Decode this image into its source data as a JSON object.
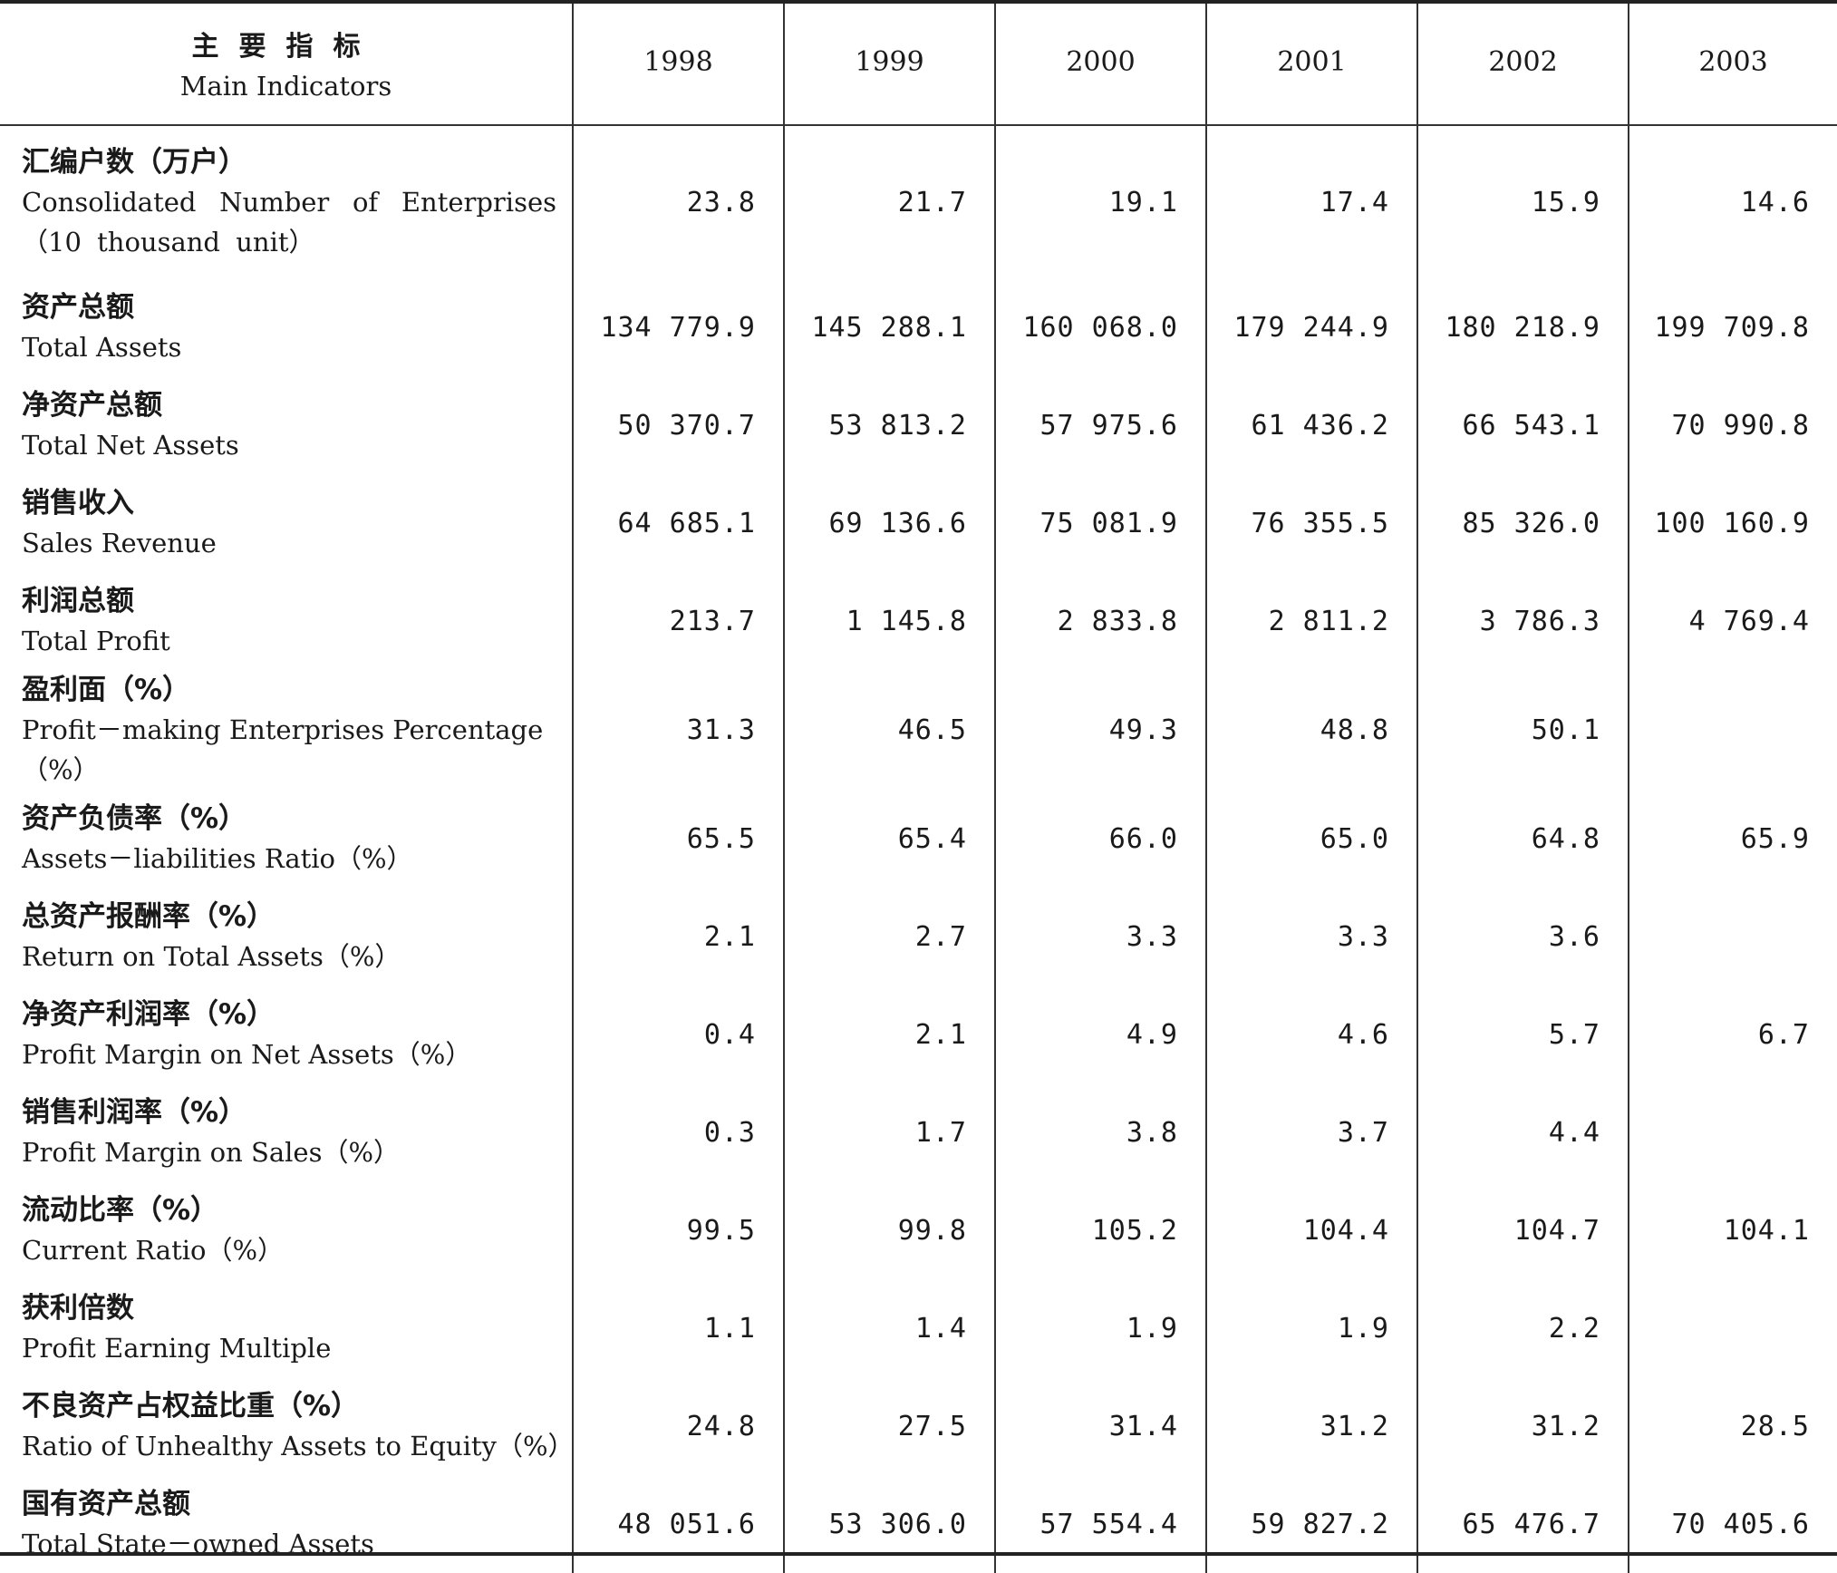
{
  "table": {
    "header": {
      "indicator_zh": "主要指标",
      "indicator_en": "Main Indicators",
      "years": [
        "1998",
        "1999",
        "2000",
        "2001",
        "2002",
        "2003"
      ]
    },
    "rows": [
      {
        "zh": "汇编户数（万户）",
        "en": "Consolidated Number of Enterprises（10 thousand unit）",
        "values": [
          "23.8",
          "21.7",
          "19.1",
          "17.4",
          "15.9",
          "14.6"
        ]
      },
      {
        "zh": "资产总额",
        "en": "Total Assets",
        "values": [
          "134 779.9",
          "145 288.1",
          "160 068.0",
          "179 244.9",
          "180 218.9",
          "199 709.8"
        ]
      },
      {
        "zh": "净资产总额",
        "en": "Total Net Assets",
        "values": [
          "50 370.7",
          "53 813.2",
          "57 975.6",
          "61 436.2",
          "66 543.1",
          "70 990.8"
        ]
      },
      {
        "zh": "销售收入",
        "en": "Sales Revenue",
        "values": [
          "64 685.1",
          "69 136.6",
          "75 081.9",
          "76 355.5",
          "85 326.0",
          "100 160.9"
        ]
      },
      {
        "zh": "利润总额",
        "en": "Total Profit",
        "values": [
          "213.7",
          "1 145.8",
          "2 833.8",
          "2 811.2",
          "3 786.3",
          "4 769.4"
        ]
      },
      {
        "zh": "盈利面（%）",
        "en": "Profit－making Enterprises Percentage（%）",
        "values": [
          "31.3",
          "46.5",
          "49.3",
          "48.8",
          "50.1",
          ""
        ]
      },
      {
        "zh": "资产负债率（%）",
        "en": "Assets－liabilities Ratio（%）",
        "values": [
          "65.5",
          "65.4",
          "66.0",
          "65.0",
          "64.8",
          "65.9"
        ]
      },
      {
        "zh": "总资产报酬率（%）",
        "en": "Return on Total Assets（%）",
        "values": [
          "2.1",
          "2.7",
          "3.3",
          "3.3",
          "3.6",
          ""
        ]
      },
      {
        "zh": "净资产利润率（%）",
        "en": "Profit Margin on Net Assets（%）",
        "values": [
          "0.4",
          "2.1",
          "4.9",
          "4.6",
          "5.7",
          "6.7"
        ]
      },
      {
        "zh": "销售利润率（%）",
        "en": "Profit Margin on Sales（%）",
        "values": [
          "0.3",
          "1.7",
          "3.8",
          "3.7",
          "4.4",
          ""
        ]
      },
      {
        "zh": "流动比率（%）",
        "en": "Current Ratio（%）",
        "values": [
          "99.5",
          "99.8",
          "105.2",
          "104.4",
          "104.7",
          "104.1"
        ]
      },
      {
        "zh": "获利倍数",
        "en": "Profit Earning Multiple",
        "values": [
          "1.1",
          "1.4",
          "1.9",
          "1.9",
          "2.2",
          ""
        ]
      },
      {
        "zh": "不良资产占权益比重（%）",
        "en": "Ratio of Unhealthy Assets to Equity（%）",
        "values": [
          "24.8",
          "27.5",
          "31.4",
          "31.2",
          "31.2",
          "28.5"
        ]
      },
      {
        "zh": "国有资产总额",
        "en": "Total State－owned Assets",
        "values": [
          "48 051.6",
          "53 306.0",
          "57 554.4",
          "59 827.2",
          "65 476.7",
          "70 405.6"
        ]
      }
    ]
  }
}
